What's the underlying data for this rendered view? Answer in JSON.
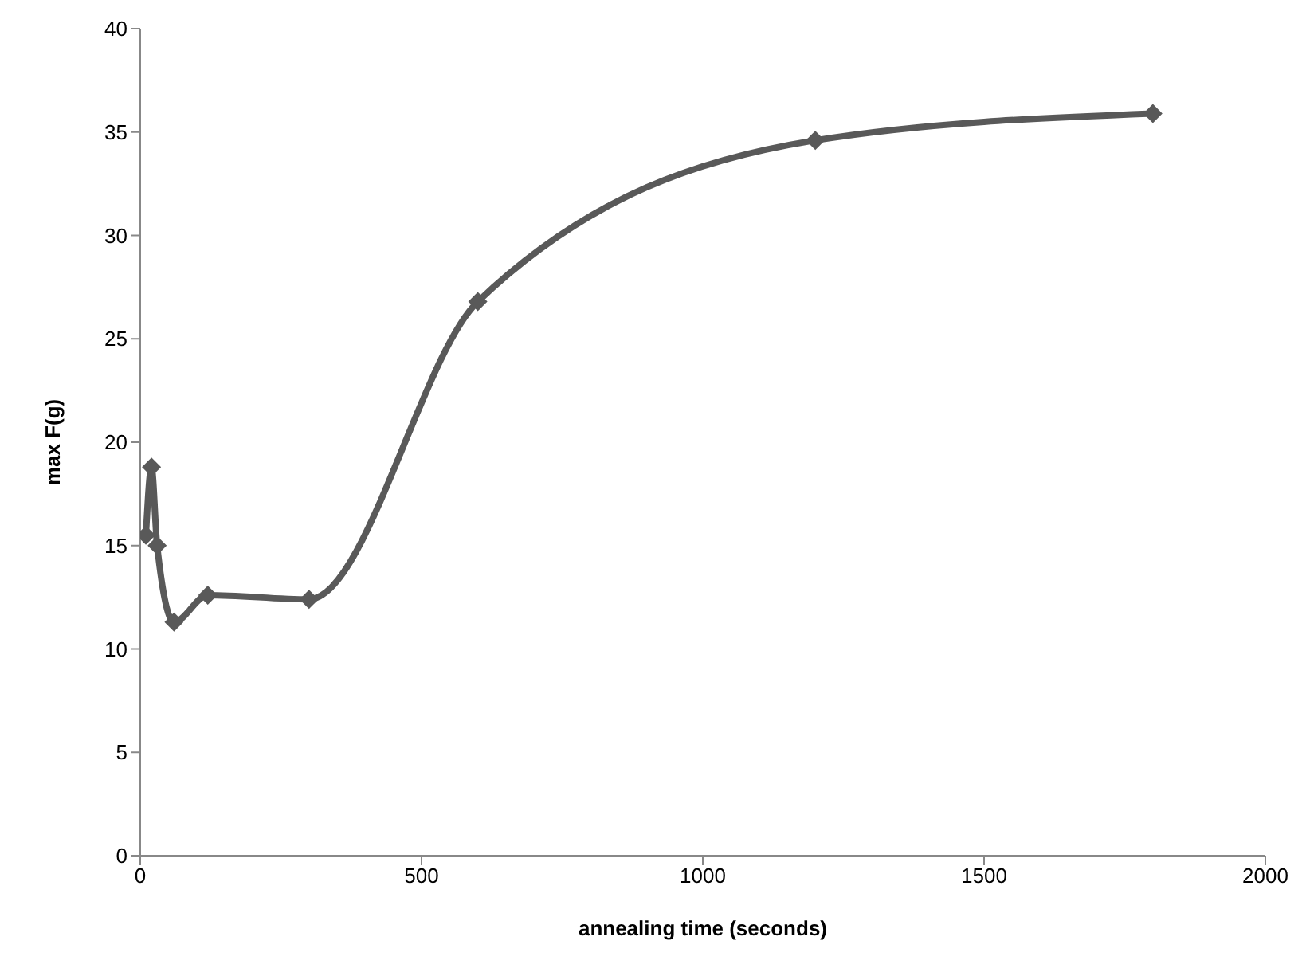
{
  "chart_data": {
    "type": "line",
    "xlabel": "annealing time (seconds)",
    "ylabel": "max F(g)",
    "x": [
      10,
      20,
      30,
      60,
      120,
      300,
      600,
      1200,
      1800
    ],
    "series": [
      {
        "color": "#595959",
        "values": [
          15.5,
          18.8,
          15.0,
          11.3,
          12.6,
          12.4,
          26.8,
          34.6,
          35.9
        ]
      }
    ],
    "xlim": [
      0,
      2000
    ],
    "xticks": [
      0,
      500,
      1000,
      1500,
      2000
    ],
    "ylim": [
      0,
      40
    ],
    "yticks": [
      0,
      5,
      10,
      15,
      20,
      25,
      30,
      35,
      40
    ],
    "grid": false,
    "marker": "diamond",
    "line_style": "solid"
  }
}
